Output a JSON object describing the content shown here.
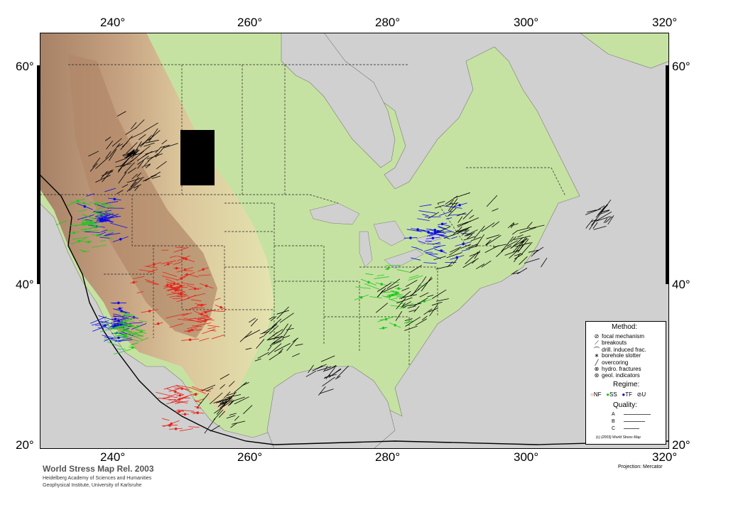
{
  "map": {
    "colors": {
      "ocean": "#d0d0d0",
      "lowland": "#c7e3a6",
      "midland": "#e8e8b0",
      "upland": "#d8b896",
      "highland": "#b48a70",
      "normal_fault": "#e8241c",
      "strike_slip": "#1ec81e",
      "thrust_fault": "#0a0ae6",
      "unknown": "#000000"
    },
    "longitude_labels": [
      "240°",
      "260°",
      "280°",
      "300°",
      "320°"
    ],
    "latitude_labels": [
      "60°",
      "40°",
      "20°"
    ]
  },
  "legend": {
    "method_title": "Method:",
    "methods": [
      "focal mechanism",
      "breakouts",
      "drill. induced frac.",
      "borehole slotter",
      "overcoring",
      "hydro. fractures",
      "geol. indicators"
    ],
    "regime_title": "Regime:",
    "regimes": [
      "NF",
      "SS",
      "TF",
      "U"
    ],
    "quality_title": "Quality:",
    "qualities": [
      "A",
      "B",
      "C"
    ],
    "copyright": "(c) (2003) World Stress Map"
  },
  "footer": {
    "title": "World Stress Map Rel. 2003",
    "line1": "Heidelberg Academy of Sciences and Humanities",
    "line2": "Geophysical Institute, University of Karlsruhe",
    "projection": "Projection: Mercator"
  }
}
